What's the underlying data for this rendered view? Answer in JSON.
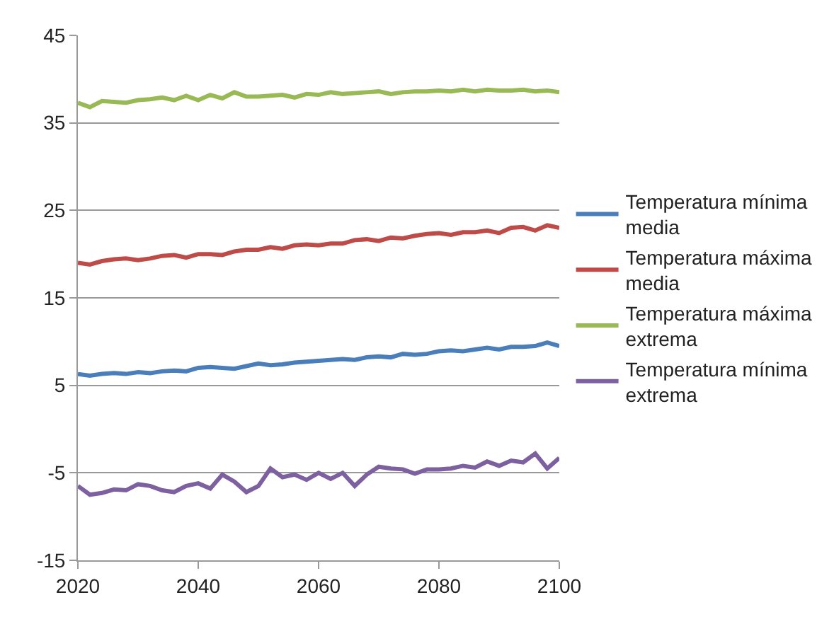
{
  "chart_data": {
    "type": "line",
    "x": [
      2020,
      2022,
      2024,
      2026,
      2028,
      2030,
      2032,
      2034,
      2036,
      2038,
      2040,
      2042,
      2044,
      2046,
      2048,
      2050,
      2052,
      2054,
      2056,
      2058,
      2060,
      2062,
      2064,
      2066,
      2068,
      2070,
      2072,
      2074,
      2076,
      2078,
      2080,
      2082,
      2084,
      2086,
      2088,
      2090,
      2092,
      2094,
      2096,
      2098,
      2100
    ],
    "series": [
      {
        "name": "Temperatura mínima media",
        "color": "#4a7ebb",
        "values": [
          6.3,
          6.1,
          6.3,
          6.4,
          6.3,
          6.5,
          6.4,
          6.6,
          6.7,
          6.6,
          7.0,
          7.1,
          7.0,
          6.9,
          7.2,
          7.5,
          7.3,
          7.4,
          7.6,
          7.7,
          7.8,
          7.9,
          8.0,
          7.9,
          8.2,
          8.3,
          8.2,
          8.6,
          8.5,
          8.6,
          8.9,
          9.0,
          8.9,
          9.1,
          9.3,
          9.1,
          9.4,
          9.4,
          9.5,
          9.9,
          9.5
        ]
      },
      {
        "name": "Temperatura máxima media",
        "color": "#be4b48",
        "values": [
          19.0,
          18.8,
          19.2,
          19.4,
          19.5,
          19.3,
          19.5,
          19.8,
          19.9,
          19.6,
          20.0,
          20.0,
          19.9,
          20.3,
          20.5,
          20.5,
          20.8,
          20.6,
          21.0,
          21.1,
          21.0,
          21.2,
          21.2,
          21.6,
          21.7,
          21.5,
          21.9,
          21.8,
          22.1,
          22.3,
          22.4,
          22.2,
          22.5,
          22.5,
          22.7,
          22.4,
          23.0,
          23.1,
          22.7,
          23.3,
          23.0
        ]
      },
      {
        "name": "Temperatura máxima extrema",
        "color": "#98b954",
        "values": [
          37.3,
          36.8,
          37.5,
          37.4,
          37.3,
          37.6,
          37.7,
          37.9,
          37.6,
          38.1,
          37.6,
          38.2,
          37.8,
          38.5,
          38.0,
          38.0,
          38.1,
          38.2,
          37.9,
          38.3,
          38.2,
          38.5,
          38.3,
          38.4,
          38.5,
          38.6,
          38.3,
          38.5,
          38.6,
          38.6,
          38.7,
          38.6,
          38.8,
          38.6,
          38.8,
          38.7,
          38.7,
          38.8,
          38.6,
          38.7,
          38.5
        ]
      },
      {
        "name": "Temperatura mínima extrema",
        "color": "#7d60a0",
        "values": [
          -6.5,
          -7.5,
          -7.3,
          -6.9,
          -7.0,
          -6.3,
          -6.5,
          -7.0,
          -7.2,
          -6.5,
          -6.2,
          -6.8,
          -5.2,
          -6.0,
          -7.2,
          -6.5,
          -4.5,
          -5.5,
          -5.2,
          -5.8,
          -5.0,
          -5.7,
          -5.0,
          -6.5,
          -5.2,
          -4.3,
          -4.5,
          -4.6,
          -5.1,
          -4.6,
          -4.6,
          -4.5,
          -4.2,
          -4.4,
          -3.7,
          -4.2,
          -3.6,
          -3.8,
          -2.8,
          -4.5,
          -3.3
        ]
      }
    ],
    "xlim": [
      2020,
      2100
    ],
    "xticks": [
      2020,
      2040,
      2060,
      2080,
      2100
    ],
    "ylim": [
      -15,
      45
    ],
    "yticks": [
      -15,
      -5,
      5,
      15,
      25,
      35,
      45
    ],
    "grid": "y",
    "legend": "right",
    "marker": "none",
    "line_style": "solid"
  }
}
